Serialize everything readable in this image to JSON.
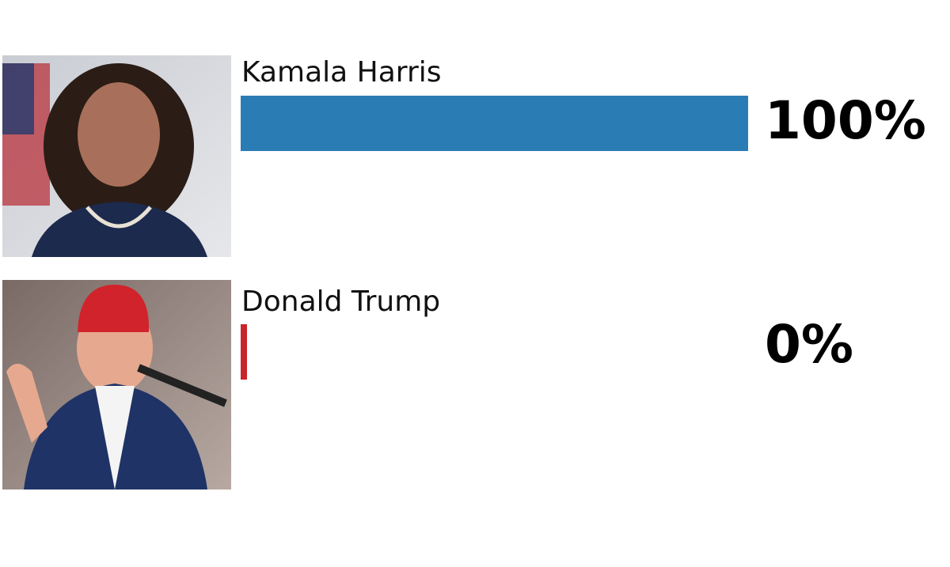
{
  "chart_data": {
    "type": "bar",
    "categories": [
      "Kamala Harris",
      "Donald Trump"
    ],
    "values": [
      100,
      0
    ],
    "value_labels": [
      "100%",
      "0%"
    ],
    "colors": [
      "#2a7db4",
      "#c8262b"
    ],
    "xlim": [
      0,
      100
    ]
  }
}
